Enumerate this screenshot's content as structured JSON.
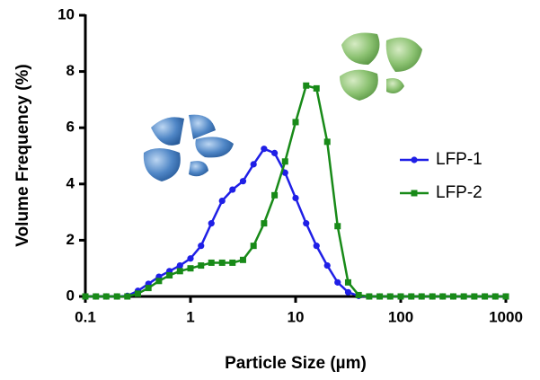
{
  "chart_data": {
    "type": "line",
    "log_x": true,
    "x_label": "Particle Size (µm)",
    "y_label": "Volume Frequency (%)",
    "x": [
      0.1,
      0.126,
      0.158,
      0.2,
      0.251,
      0.316,
      0.398,
      0.501,
      0.631,
      0.794,
      1,
      1.26,
      1.58,
      2,
      2.51,
      3.16,
      3.98,
      5.01,
      6.31,
      7.94,
      10,
      12.6,
      15.8,
      20,
      25.1,
      31.6,
      39.8,
      50.1,
      63.1,
      79.4,
      100,
      126,
      158,
      200,
      251,
      316,
      398,
      501,
      631,
      794,
      1000
    ],
    "series": [
      {
        "name": "LFP-1",
        "color": "#1f1fe6",
        "marker": "circle",
        "values": [
          0,
          0,
          0,
          0,
          0.02,
          0.2,
          0.45,
          0.7,
          0.9,
          1.1,
          1.35,
          1.8,
          2.6,
          3.4,
          3.8,
          4.1,
          4.7,
          5.25,
          5.1,
          4.4,
          3.5,
          2.6,
          1.8,
          1.1,
          0.5,
          0.15,
          0.02,
          0,
          0,
          0,
          0,
          0,
          0,
          0,
          0,
          0,
          0,
          0,
          0,
          0,
          0
        ]
      },
      {
        "name": "LFP-2",
        "color": "#188a18",
        "marker": "square",
        "values": [
          0,
          0,
          0,
          0,
          0,
          0.1,
          0.3,
          0.55,
          0.75,
          0.9,
          1.0,
          1.1,
          1.2,
          1.2,
          1.2,
          1.3,
          1.8,
          2.6,
          3.6,
          4.8,
          6.2,
          7.5,
          7.4,
          5.5,
          2.5,
          0.5,
          0.05,
          0,
          0,
          0,
          0,
          0,
          0,
          0,
          0,
          0,
          0,
          0,
          0,
          0,
          0
        ]
      }
    ],
    "xlim": [
      0.1,
      1000
    ],
    "xticks": [
      0.1,
      1,
      10,
      100,
      1000
    ],
    "ylim": [
      0,
      10
    ],
    "yticks": [
      0,
      2,
      4,
      6,
      8,
      10
    ],
    "grid": false,
    "legend": "right"
  }
}
